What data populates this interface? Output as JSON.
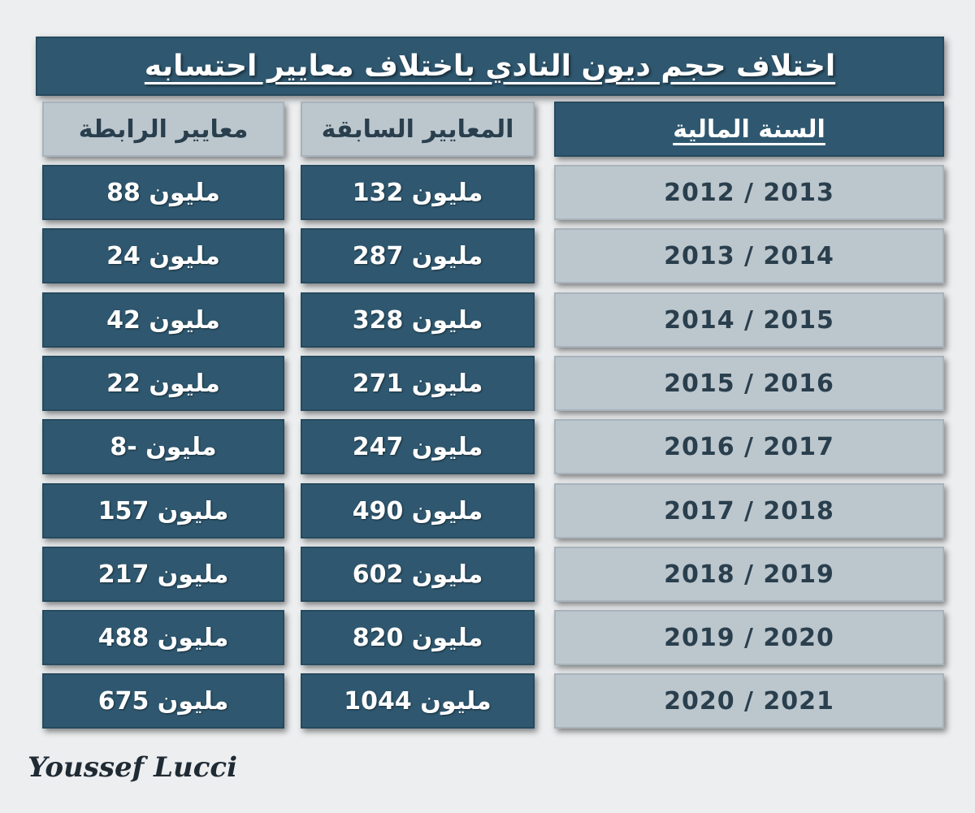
{
  "title": "اختلاف حجم ديون النادي باختلاف معايير احتسابه",
  "chart_data": {
    "type": "table",
    "columns": [
      "السنة المالية",
      "المعايير السابقة",
      "معايير الرابطة"
    ],
    "rows": [
      {
        "year": "2012 / 2013",
        "previous": "مليون 132",
        "league": "مليون 88"
      },
      {
        "year": "2013 / 2014",
        "previous": "مليون 287",
        "league": "مليون 24"
      },
      {
        "year": "2014 / 2015",
        "previous": "مليون 328",
        "league": "مليون 42"
      },
      {
        "year": "2015 / 2016",
        "previous": "مليون 271",
        "league": "مليون 22"
      },
      {
        "year": "2016 / 2017",
        "previous": "مليون 247",
        "league": "مليون -8"
      },
      {
        "year": "2017 / 2018",
        "previous": "مليون 490",
        "league": "مليون 157"
      },
      {
        "year": "2018 / 2019",
        "previous": "مليون 602",
        "league": "مليون 217"
      },
      {
        "year": "2019 / 2020",
        "previous": "مليون 820",
        "league": "مليون 488"
      },
      {
        "year": "2020 / 2021",
        "previous": "مليون 1044",
        "league": "مليون 675"
      }
    ]
  },
  "signature": "Youssef Lucci",
  "colors": {
    "dark": "#2f5870",
    "light": "#bcc6cd",
    "background": "#eceef0"
  }
}
